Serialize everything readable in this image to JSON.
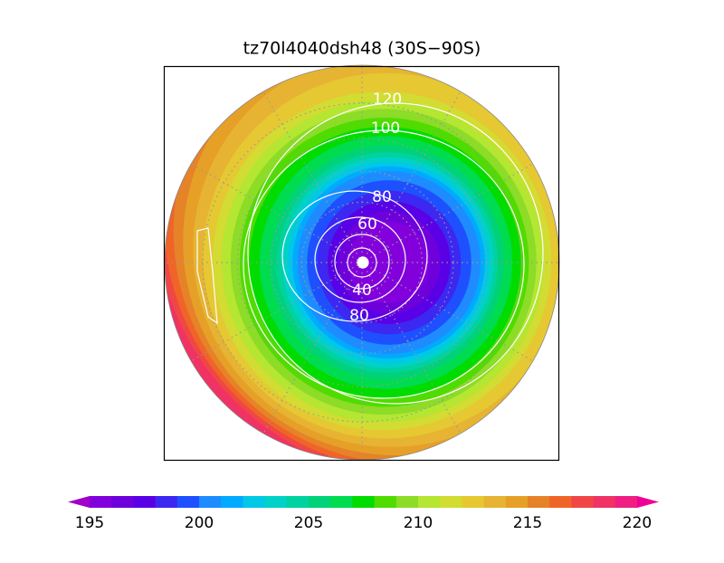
{
  "map": {
    "title": "tz70l4040dsh48 (30S−90S)",
    "contour_labels": [
      "120",
      "100",
      "80",
      "60",
      "40",
      "80"
    ],
    "colorbar": {
      "ticks": [
        195,
        200,
        205,
        210,
        215,
        220
      ],
      "colors": [
        "#a000c8",
        "#8200dc",
        "#6e00dc",
        "#5a00e6",
        "#3c28f0",
        "#1e50ff",
        "#1e8cff",
        "#00aaff",
        "#00c8e6",
        "#00d2c8",
        "#00d2a0",
        "#00d278",
        "#00dc50",
        "#00dc00",
        "#50dc00",
        "#8cdc28",
        "#b4e632",
        "#d2dc32",
        "#e6c832",
        "#e6b432",
        "#e6a028",
        "#e68228",
        "#f06428",
        "#f04646",
        "#f03264",
        "#f01e82",
        "#f00096"
      ]
    }
  }
}
